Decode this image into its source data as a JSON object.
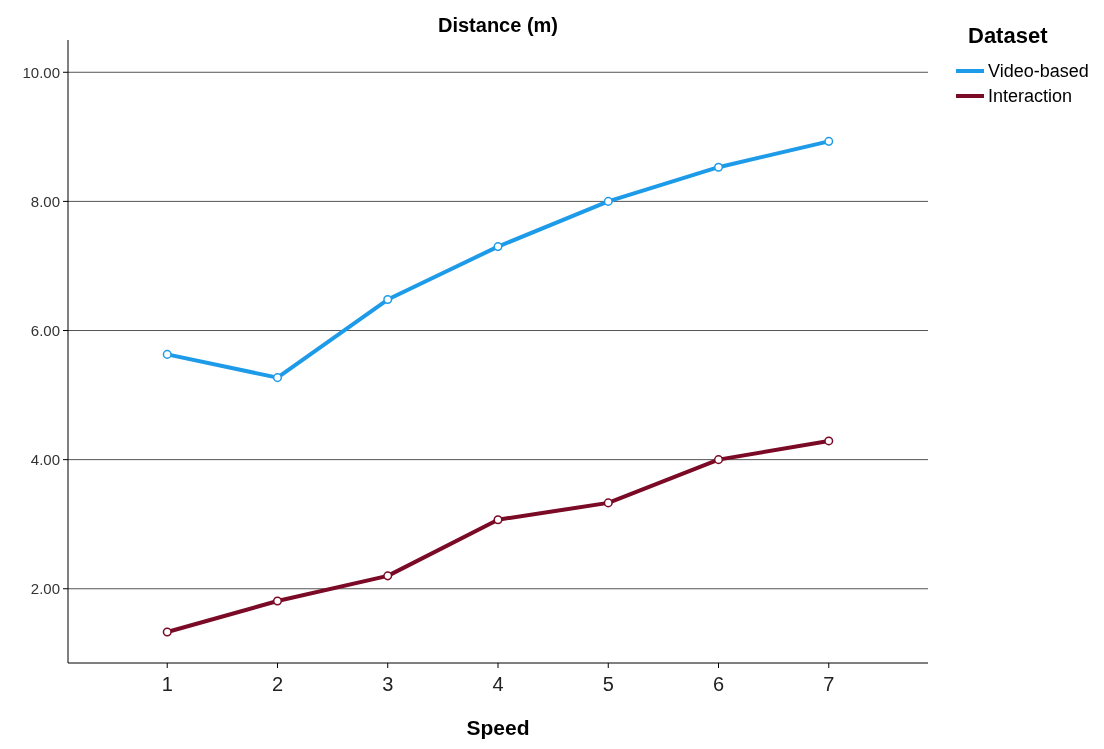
{
  "chart_data": {
    "type": "line",
    "title": "Distance (m)",
    "xlabel": "Speed",
    "legend_title": "Dataset",
    "x": [
      1,
      2,
      3,
      4,
      5,
      6,
      7
    ],
    "xlim": [
      0.1,
      7.9
    ],
    "xticks": [
      1,
      2,
      3,
      4,
      5,
      6,
      7
    ],
    "ylim": [
      0.85,
      10.5
    ],
    "yticks": [
      {
        "value": 2,
        "label": "2.00"
      },
      {
        "value": 4,
        "label": "4.00"
      },
      {
        "value": 6,
        "label": "6.00"
      },
      {
        "value": 8,
        "label": "8.00"
      },
      {
        "value": 10,
        "label": "10.00"
      }
    ],
    "grid": "y",
    "legend": "top right",
    "marker": "circle",
    "line_style": "solid",
    "series": [
      {
        "name": "Video-based",
        "color": "#1e9be8",
        "values": [
          5.63,
          5.27,
          6.48,
          7.3,
          8.0,
          8.53,
          8.93
        ]
      },
      {
        "name": "Interaction",
        "color": "#7a0a26",
        "values": [
          1.33,
          1.81,
          2.2,
          3.07,
          3.33,
          4.0,
          4.29
        ]
      }
    ]
  }
}
